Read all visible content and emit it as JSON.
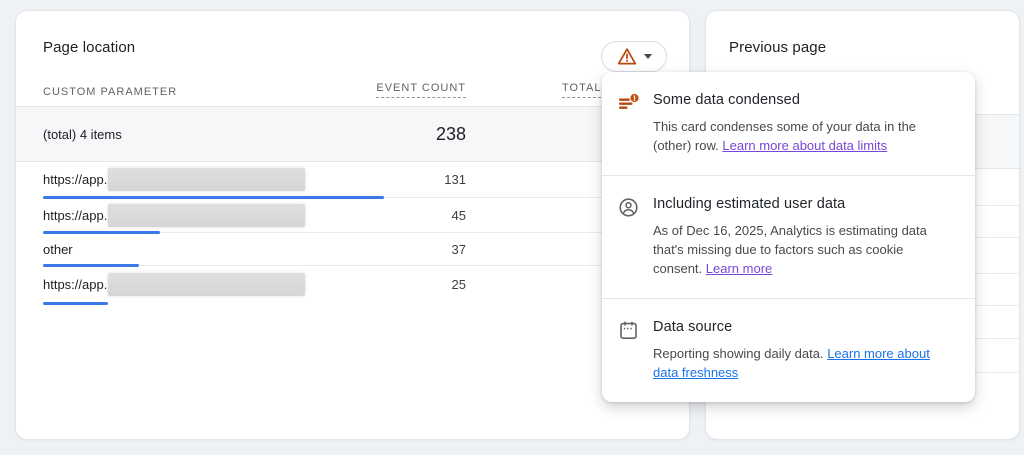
{
  "colors": {
    "accent_blue": "#3b78e8",
    "warning_orange": "#b5490f",
    "link_purple": "#7a46d6",
    "link_blue": "#1a73e8",
    "page_background": "#eef1f5"
  },
  "left_card": {
    "title": "Page location",
    "table": {
      "columns": {
        "param": "CUSTOM PARAMETER",
        "count": "EVENT COUNT",
        "total": "TOTAL"
      },
      "total_row": {
        "label": "(total) 4 items",
        "value": "238"
      },
      "max_value": 131,
      "rows": [
        {
          "label": "https://app.",
          "redacted": true,
          "value": 131
        },
        {
          "label": "https://app.",
          "redacted": true,
          "value": 45
        },
        {
          "label": "other",
          "redacted": false,
          "value": 37
        },
        {
          "label": "https://app.",
          "redacted": true,
          "value": 25
        }
      ]
    }
  },
  "right_card": {
    "title": "Previous page"
  },
  "popover": {
    "sections": [
      {
        "icon": "condensed-data-icon",
        "title": "Some data condensed",
        "body": "This card condenses some of your data in the (other) row.",
        "link": "Learn more about data limits",
        "link_color": "#7a46d6"
      },
      {
        "icon": "account-circle-icon",
        "title": "Including estimated user data",
        "body": "As of Dec 16, 2025, Analytics is estimating data that's missing due to factors such as cookie consent.",
        "link": "Learn more",
        "link_color": "#7a46d6"
      },
      {
        "icon": "calendar-icon",
        "title": "Data source",
        "body": "Reporting showing daily data.",
        "link": "Learn more about data freshness",
        "link_color": "#1a73e8"
      }
    ]
  },
  "chart_data": {
    "type": "bar",
    "title": "Page location — event count by custom parameter",
    "categories": [
      "https://app. (redacted)",
      "https://app. (redacted)",
      "other",
      "https://app. (redacted)"
    ],
    "values": [
      131,
      45,
      37,
      25
    ],
    "total": 238,
    "xlabel": "EVENT COUNT",
    "ylabel": "CUSTOM PARAMETER",
    "xlim": [
      0,
      131
    ],
    "legend": false
  }
}
